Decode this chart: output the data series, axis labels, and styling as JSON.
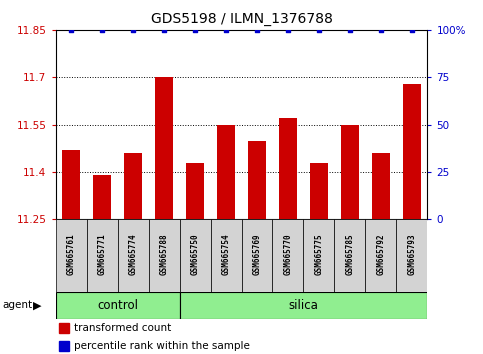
{
  "title": "GDS5198 / ILMN_1376788",
  "samples": [
    "GSM665761",
    "GSM665771",
    "GSM665774",
    "GSM665788",
    "GSM665750",
    "GSM665754",
    "GSM665769",
    "GSM665770",
    "GSM665775",
    "GSM665785",
    "GSM665792",
    "GSM665793"
  ],
  "bar_values": [
    11.47,
    11.39,
    11.46,
    11.7,
    11.43,
    11.55,
    11.5,
    11.57,
    11.43,
    11.55,
    11.46,
    11.68
  ],
  "percentile_values": [
    100,
    100,
    100,
    100,
    100,
    100,
    100,
    100,
    100,
    100,
    100,
    100
  ],
  "control_count": 4,
  "silica_count": 8,
  "ylim_left": [
    11.25,
    11.85
  ],
  "ylim_right": [
    0,
    100
  ],
  "yticks_left": [
    11.25,
    11.4,
    11.55,
    11.7,
    11.85
  ],
  "yticks_right": [
    0,
    25,
    50,
    75,
    100
  ],
  "bar_color": "#cc0000",
  "dot_color": "#0000cc",
  "bg_color": "#ffffff",
  "control_color": "#90ee90",
  "silica_color": "#90ee90",
  "sample_box_color": "#d3d3d3",
  "left_axis_color": "#cc0000",
  "right_axis_color": "#0000cc",
  "bar_width": 0.6,
  "grid_dotted_at": [
    11.4,
    11.55,
    11.7
  ],
  "fig_width": 4.83,
  "fig_height": 3.54,
  "dpi": 100
}
